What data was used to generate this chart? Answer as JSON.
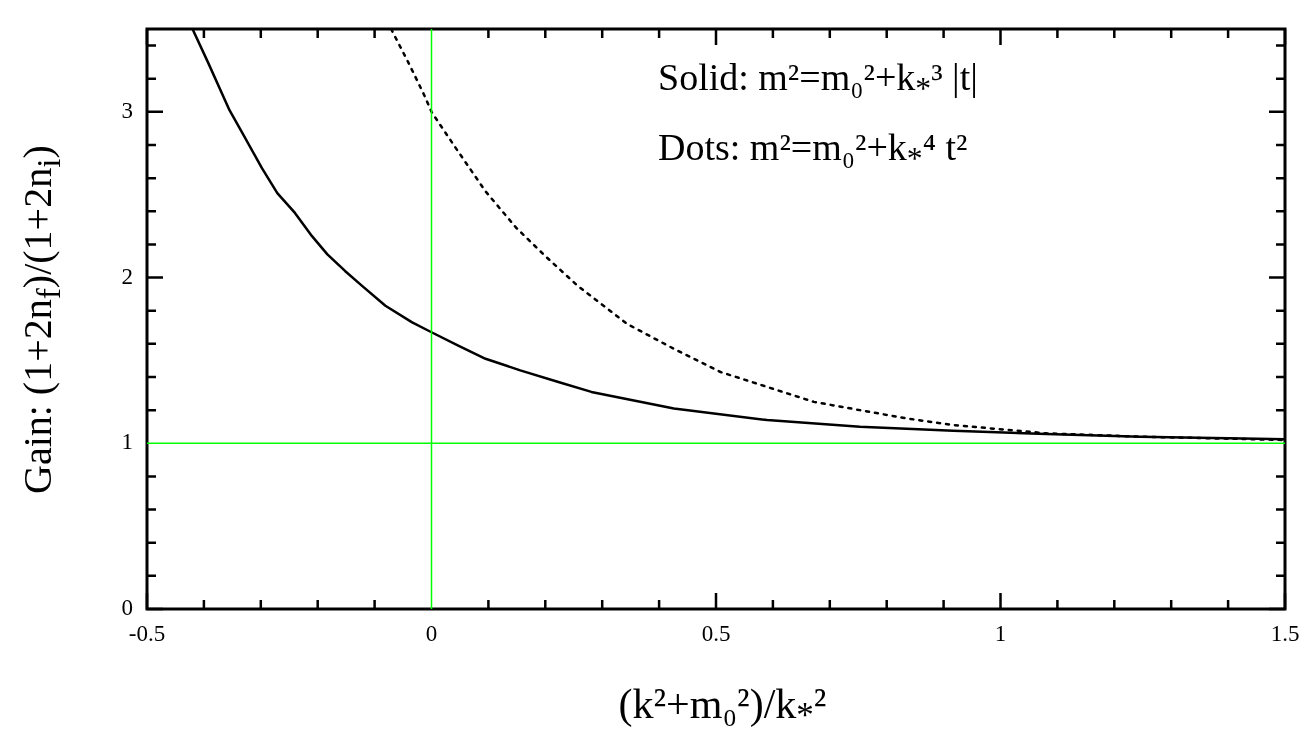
{
  "chart_data": {
    "type": "line",
    "xlabel": "(k²+m₀²)/k$_{*}$²",
    "ylabel": "Gain:  (1+2n$_{f}$)/(1+2n$_{i}$)",
    "annotations": [
      "Solid:  m²=m₀²+k$_{*}$³ |t|",
      "Dots:  m²=m₀²+k$_{*}$⁴ t²"
    ],
    "series": [
      {
        "color": "#000000",
        "line_style": "solid",
        "x": [
          -0.42,
          -0.393,
          -0.355,
          -0.332,
          -0.298,
          -0.271,
          -0.24,
          -0.21,
          -0.183,
          -0.152,
          -0.122,
          -0.081,
          -0.034,
          0,
          0.047,
          0.095,
          0.156,
          0.223,
          0.281,
          0.426,
          0.59,
          0.753,
          0.917,
          1.081,
          1.245,
          1.5
        ],
        "values": [
          3.5,
          3.3,
          3.01,
          2.87,
          2.66,
          2.51,
          2.39,
          2.25,
          2.14,
          2.04,
          1.95,
          1.83,
          1.73,
          1.67,
          1.59,
          1.51,
          1.44,
          1.37,
          1.31,
          1.21,
          1.14,
          1.1,
          1.075,
          1.056,
          1.04,
          1.025
        ]
      },
      {
        "color": "#000000",
        "line_style": "dotted",
        "x": [
          -0.071,
          -0.041,
          -0.014,
          0,
          0.041,
          0.095,
          0.149,
          0.203,
          0.257,
          0.344,
          0.426,
          0.508,
          0.59,
          0.672,
          0.753,
          0.835,
          0.917,
          1.081,
          1.245,
          1.5
        ],
        "values": [
          3.5,
          3.3,
          3.11,
          3.0,
          2.79,
          2.52,
          2.3,
          2.12,
          1.95,
          1.72,
          1.57,
          1.43,
          1.34,
          1.25,
          1.2,
          1.15,
          1.11,
          1.06,
          1.04,
          1.02
        ]
      }
    ],
    "xlim": [
      -0.5,
      1.5
    ],
    "xticks": [
      -0.5,
      {
        "value": -0.4,
        "label": null
      },
      {
        "value": -0.3,
        "label": null
      },
      {
        "value": -0.2,
        "label": null
      },
      {
        "value": -0.1,
        "label": null
      },
      0,
      {
        "value": 0.1,
        "label": null
      },
      {
        "value": 0.2,
        "label": null
      },
      {
        "value": 0.3,
        "label": null
      },
      {
        "value": 0.4,
        "label": null
      },
      0.5,
      {
        "value": 0.6,
        "label": null
      },
      {
        "value": 0.7,
        "label": null
      },
      {
        "value": 0.8,
        "label": null
      },
      {
        "value": 0.9,
        "label": null
      },
      1,
      {
        "value": 1.1,
        "label": null
      },
      {
        "value": 1.2,
        "label": null
      },
      {
        "value": 1.3,
        "label": null
      },
      {
        "value": 1.4,
        "label": null
      },
      1.5
    ],
    "ylim": [
      0,
      3.5
    ],
    "yticks": [
      0,
      {
        "value": 0.2,
        "label": null
      },
      {
        "value": 0.4,
        "label": null
      },
      {
        "value": 0.6,
        "label": null
      },
      {
        "value": 0.8,
        "label": null
      },
      1,
      {
        "value": 1.2,
        "label": null
      },
      {
        "value": 1.4,
        "label": null
      },
      {
        "value": 1.6,
        "label": null
      },
      {
        "value": 1.8,
        "label": null
      },
      2,
      {
        "value": 2.2,
        "label": null
      },
      {
        "value": 2.4,
        "label": null
      },
      {
        "value": 2.6,
        "label": null
      },
      {
        "value": 2.8,
        "label": null
      },
      3,
      {
        "value": 3.2,
        "label": null
      },
      {
        "value": 3.4,
        "label": null
      }
    ],
    "ref_lines": [
      {
        "axis": "x",
        "value": 0,
        "color": "#00ff00"
      },
      {
        "axis": "y",
        "value": 1,
        "color": "#00ff00"
      }
    ],
    "grid": false,
    "legend": false,
    "marker": "none"
  }
}
